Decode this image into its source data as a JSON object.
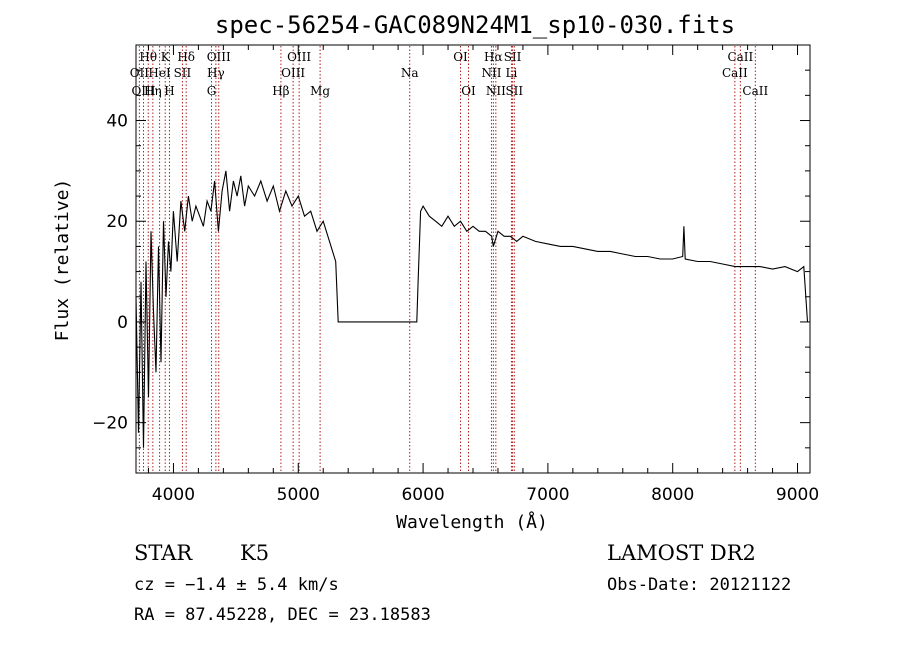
{
  "chart_data": {
    "type": "line",
    "title": "spec-56254-GAC089N24M1_sp10-030.fits",
    "xlabel": "Wavelength (Å)",
    "ylabel": "Flux (relative)",
    "xlim": [
      3700,
      9100
    ],
    "ylim": [
      -30,
      55
    ],
    "xticks": [
      4000,
      5000,
      6000,
      7000,
      8000,
      9000
    ],
    "yticks": [
      -20,
      0,
      20,
      40
    ],
    "spectrum": {
      "x": [
        3700,
        3720,
        3740,
        3760,
        3780,
        3800,
        3820,
        3840,
        3860,
        3880,
        3900,
        3920,
        3940,
        3960,
        3980,
        4000,
        4030,
        4060,
        4090,
        4120,
        4150,
        4180,
        4210,
        4240,
        4270,
        4300,
        4330,
        4360,
        4390,
        4420,
        4450,
        4480,
        4510,
        4540,
        4570,
        4600,
        4650,
        4700,
        4750,
        4800,
        4850,
        4900,
        4950,
        5000,
        5050,
        5100,
        5150,
        5200,
        5250,
        5300,
        5320,
        5400,
        5600,
        5800,
        5950,
        5960,
        5980,
        6000,
        6050,
        6100,
        6150,
        6200,
        6250,
        6300,
        6350,
        6400,
        6450,
        6500,
        6550,
        6563,
        6600,
        6650,
        6700,
        6750,
        6800,
        6900,
        7000,
        7100,
        7200,
        7300,
        7400,
        7500,
        7600,
        7700,
        7800,
        7900,
        8000,
        8080,
        8090,
        8100,
        8200,
        8300,
        8400,
        8500,
        8600,
        8700,
        8800,
        8900,
        9000,
        9050,
        9080
      ],
      "y": [
        5,
        -22,
        8,
        -25,
        12,
        -15,
        18,
        2,
        -10,
        15,
        -8,
        20,
        5,
        16,
        10,
        22,
        12,
        24,
        18,
        25,
        20,
        23,
        21,
        19,
        24,
        22,
        28,
        18,
        26,
        30,
        22,
        28,
        25,
        29,
        23,
        27,
        25,
        28,
        24,
        27,
        22,
        26,
        23,
        25,
        21,
        22,
        18,
        20,
        16,
        12,
        0,
        0,
        0,
        0,
        0,
        8,
        22,
        23,
        21,
        20,
        19,
        21,
        19,
        20,
        18,
        19,
        18,
        18,
        17,
        15,
        18,
        17,
        17,
        16,
        17,
        16,
        15.5,
        15,
        15,
        14.5,
        14,
        14,
        13.5,
        13,
        13,
        12.5,
        12.5,
        13,
        19,
        12.5,
        12,
        12,
        11.5,
        11,
        11,
        11,
        10.5,
        11,
        10,
        11,
        0
      ]
    },
    "lines": [
      {
        "name": "Hθ",
        "wl": 3798,
        "row": 1
      },
      {
        "name": "OII",
        "wl": 3727,
        "row": 2
      },
      {
        "name": "OIII",
        "wl": 3760,
        "row": 3
      },
      {
        "name": "Hη",
        "wl": 3835,
        "row": 3
      },
      {
        "name": "HeI",
        "wl": 3889,
        "row": 2
      },
      {
        "name": "K",
        "wl": 3934,
        "row": 1
      },
      {
        "name": "H",
        "wl": 3968,
        "row": 3
      },
      {
        "name": "SII",
        "wl": 4072,
        "row": 2
      },
      {
        "name": "Hδ",
        "wl": 4102,
        "row": 1
      },
      {
        "name": "G",
        "wl": 4305,
        "row": 3
      },
      {
        "name": "OIII",
        "wl": 4363,
        "row": 1
      },
      {
        "name": "Hγ",
        "wl": 4340,
        "row": 2
      },
      {
        "name": "Hβ",
        "wl": 4861,
        "row": 3
      },
      {
        "name": "OIII",
        "wl": 4959,
        "row": 2
      },
      {
        "name": "OIII",
        "wl": 5007,
        "row": 1
      },
      {
        "name": "Mg",
        "wl": 5175,
        "row": 3
      },
      {
        "name": "Na",
        "wl": 5893,
        "row": 2
      },
      {
        "name": "OI",
        "wl": 6300,
        "row": 1
      },
      {
        "name": "OI",
        "wl": 6364,
        "row": 3
      },
      {
        "name": "NII",
        "wl": 6548,
        "row": 2
      },
      {
        "name": "Hα",
        "wl": 6563,
        "row": 1
      },
      {
        "name": "NII",
        "wl": 6583,
        "row": 3
      },
      {
        "name": "Li",
        "wl": 6708,
        "row": 2
      },
      {
        "name": "SII",
        "wl": 6717,
        "row": 1
      },
      {
        "name": "SII",
        "wl": 6731,
        "row": 3
      },
      {
        "name": "CaII",
        "wl": 8498,
        "row": 2
      },
      {
        "name": "CaII",
        "wl": 8542,
        "row": 1
      },
      {
        "name": "CaII",
        "wl": 8662,
        "row": 3
      }
    ],
    "line_color": "#b22222",
    "grid": false
  },
  "info": {
    "class": "STAR",
    "subclass": "K5",
    "survey": "LAMOST DR2",
    "cz": "cz = −1.4 ± 5.4 km/s",
    "obs_date": "Obs-Date: 20121122",
    "radec": "RA =  87.45228, DEC =  23.18583"
  }
}
